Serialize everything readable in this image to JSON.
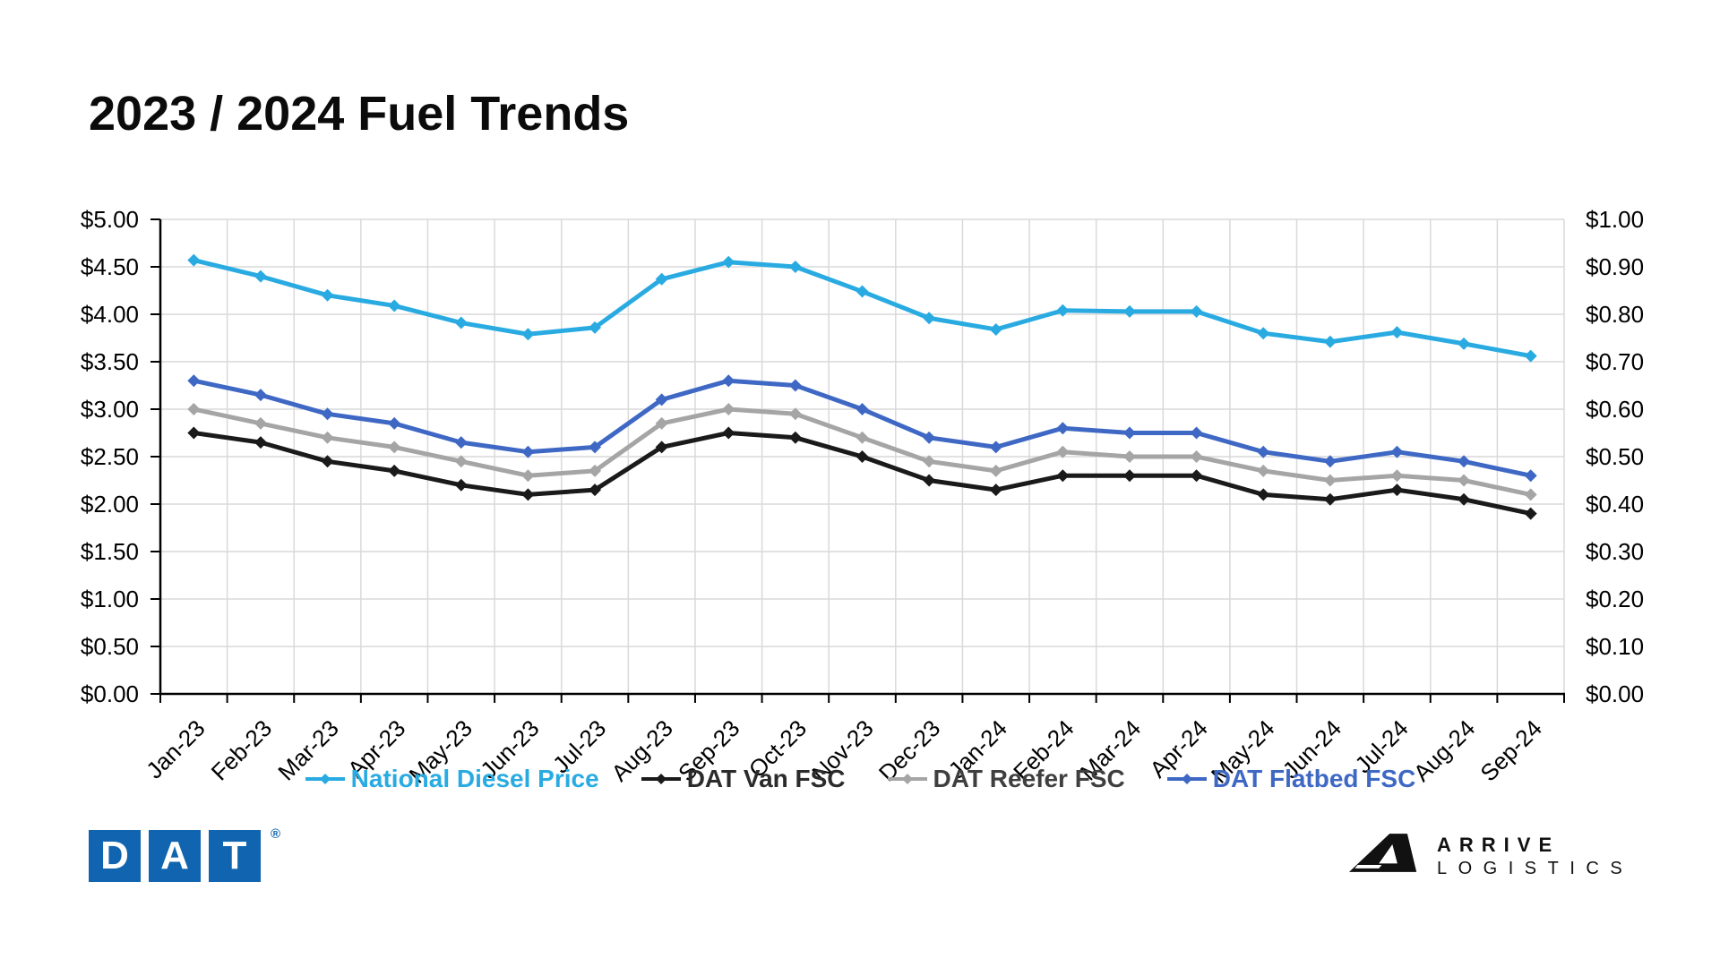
{
  "title": "2023 / 2024 Fuel Trends",
  "chart_data": {
    "type": "line",
    "title": "2023 / 2024 Fuel Trends",
    "categories": [
      "Jan-23",
      "Feb-23",
      "Mar-23",
      "Apr-23",
      "May-23",
      "Jun-23",
      "Jul-23",
      "Aug-23",
      "Sep-23",
      "Oct-23",
      "Nov-23",
      "Dec-23",
      "Jan-24",
      "Feb-24",
      "Mar-24",
      "Apr-24",
      "May-24",
      "Jun-24",
      "Jul-24",
      "Aug-24",
      "Sep-24"
    ],
    "series": [
      {
        "name": "National Diesel Price",
        "axis": "left",
        "color": "#29ABE2",
        "label_color": "#29ABE2",
        "values": [
          4.57,
          4.4,
          4.2,
          4.09,
          3.91,
          3.79,
          3.86,
          4.37,
          4.55,
          4.5,
          4.24,
          3.96,
          3.84,
          4.04,
          4.03,
          4.03,
          3.8,
          3.71,
          3.81,
          3.69,
          3.56
        ]
      },
      {
        "name": "DAT Van FSC",
        "axis": "right",
        "color": "#1A1A1A",
        "label_color": "#2B2B2B",
        "values": [
          0.55,
          0.53,
          0.49,
          0.47,
          0.44,
          0.42,
          0.43,
          0.52,
          0.55,
          0.54,
          0.5,
          0.45,
          0.43,
          0.46,
          0.46,
          0.46,
          0.42,
          0.41,
          0.43,
          0.41,
          0.38
        ]
      },
      {
        "name": "DAT Reefer FSC",
        "axis": "right",
        "color": "#A5A5A5",
        "label_color": "#3F3F3F",
        "values": [
          0.6,
          0.57,
          0.54,
          0.52,
          0.49,
          0.46,
          0.47,
          0.57,
          0.6,
          0.59,
          0.54,
          0.49,
          0.47,
          0.51,
          0.5,
          0.5,
          0.47,
          0.45,
          0.46,
          0.45,
          0.42
        ]
      },
      {
        "name": "DAT Flatbed FSC",
        "axis": "right",
        "color": "#3E68C4",
        "label_color": "#3E68C4",
        "values": [
          0.66,
          0.63,
          0.59,
          0.57,
          0.53,
          0.51,
          0.52,
          0.62,
          0.66,
          0.65,
          0.6,
          0.54,
          0.52,
          0.56,
          0.55,
          0.55,
          0.51,
          0.49,
          0.51,
          0.49,
          0.46
        ]
      }
    ],
    "left_axis": {
      "min": 0,
      "max": 5,
      "tick_step": 0.5,
      "ticks": [
        "$5.00",
        "$4.50",
        "$4.00",
        "$3.50",
        "$3.00",
        "$2.50",
        "$2.00",
        "$1.50",
        "$1.00",
        "$0.50",
        "$0.00"
      ]
    },
    "right_axis": {
      "min": 0,
      "max": 1,
      "tick_step": 0.1,
      "ticks": [
        "$1.00",
        "$0.90",
        "$0.80",
        "$0.70",
        "$0.60",
        "$0.50",
        "$0.40",
        "$0.30",
        "$0.20",
        "$0.10",
        "$0.00"
      ]
    },
    "grid": true,
    "legend_position": "bottom"
  },
  "colors": {
    "gridline": "#D9D9D9",
    "axis": "#000000",
    "background": "#FFFFFF"
  },
  "logos": {
    "dat": {
      "letters": [
        "D",
        "A",
        "T"
      ],
      "registered": "®",
      "color": "#1164AF"
    },
    "arrive": {
      "line1": "ARRIVE",
      "line2": "LOGISTICS"
    }
  }
}
